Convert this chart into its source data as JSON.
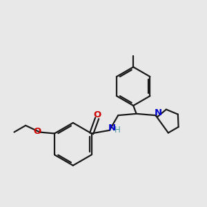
{
  "bg_color": "#e8e8e8",
  "bond_color": "#1a1a1a",
  "oxygen_color": "#cc0000",
  "nitrogen_color": "#0000cc",
  "nh_color": "#4a9a9a",
  "line_width": 1.6,
  "font_size_atom": 8.5,
  "fig_size": [
    3.0,
    3.0
  ],
  "dpi": 100,
  "xlim": [
    0,
    10
  ],
  "ylim": [
    0,
    10
  ]
}
